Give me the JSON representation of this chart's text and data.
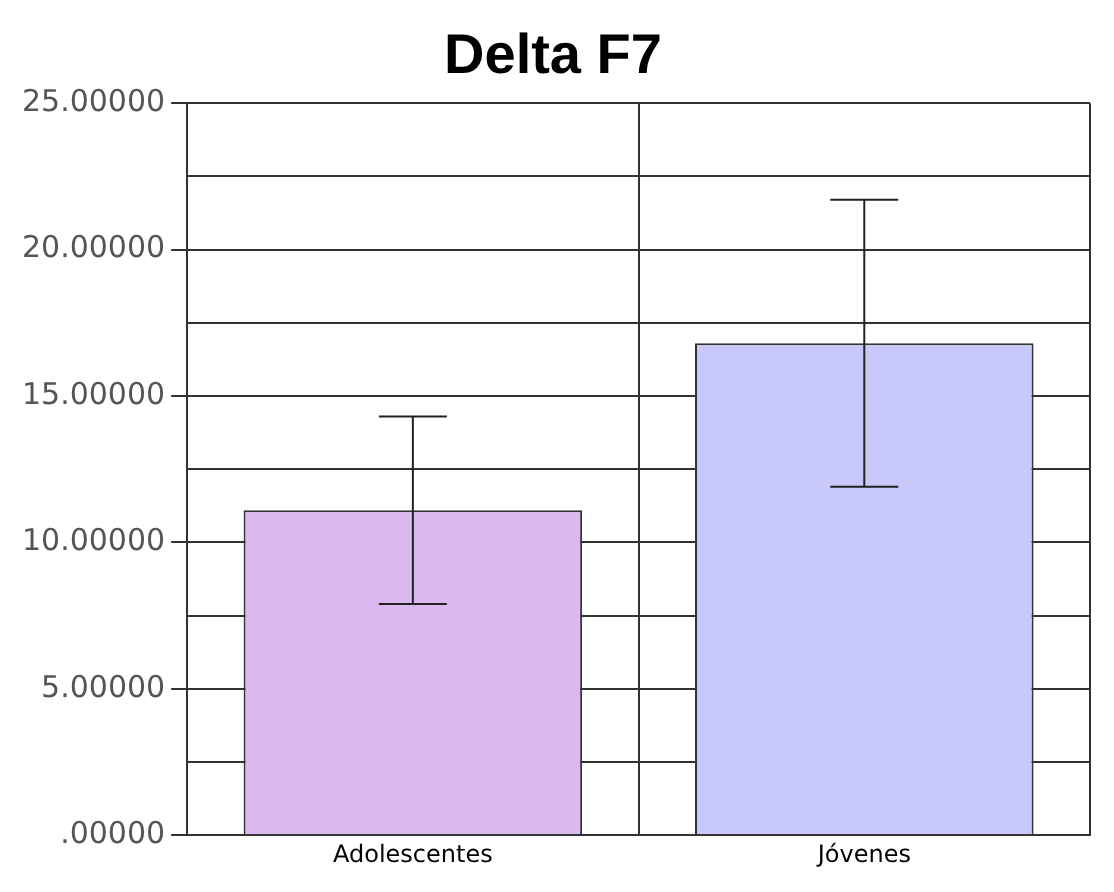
{
  "chart_data": {
    "type": "bar",
    "title": "Delta F7",
    "categories": [
      "Adolescentes",
      "Jóvenes"
    ],
    "values": [
      11.1,
      16.8
    ],
    "colors": [
      "#dcb8f0",
      "#c8c8fa"
    ],
    "errors": [
      [
        7.9,
        14.3
      ],
      [
        11.9,
        21.7
      ]
    ],
    "ylim": [
      0,
      25
    ],
    "yticks": [
      {
        "value": 0,
        "label": ".00000"
      },
      {
        "value": 2.5,
        "label": null
      },
      {
        "value": 5,
        "label": "5.00000"
      },
      {
        "value": 7.5,
        "label": null
      },
      {
        "value": 10,
        "label": "10.00000"
      },
      {
        "value": 12.5,
        "label": null
      },
      {
        "value": 15,
        "label": "15.00000"
      },
      {
        "value": 17.5,
        "label": null
      },
      {
        "value": 20,
        "label": "20.00000"
      },
      {
        "value": 22.5,
        "label": null
      },
      {
        "value": 25,
        "label": "25.00000"
      }
    ],
    "grid": true,
    "legend": false
  }
}
